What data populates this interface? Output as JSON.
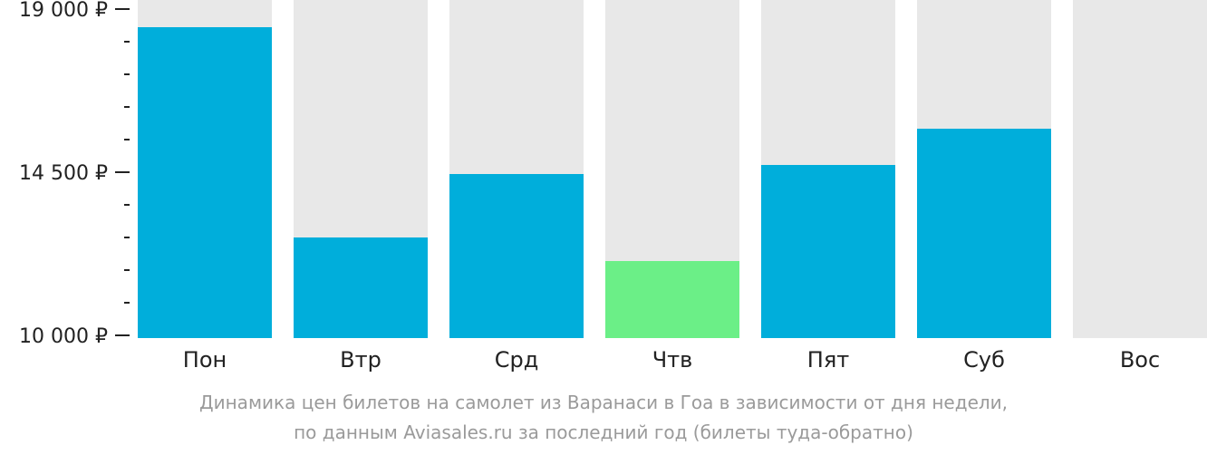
{
  "chart_data": {
    "type": "bar",
    "categories": [
      "Пон",
      "Втр",
      "Срд",
      "Чтв",
      "Пят",
      "Суб",
      "Вос"
    ],
    "values": [
      18500,
      12700,
      14450,
      12050,
      14700,
      15700,
      null
    ],
    "ylim": [
      10000,
      19000
    ],
    "yticks": [
      {
        "value": 10000,
        "label": "10 000 ₽"
      },
      {
        "value": 14500,
        "label": "14 500 ₽"
      },
      {
        "value": 19000,
        "label": "19 000 ₽"
      }
    ],
    "minor_tick_step": 900,
    "highlight_index": 3,
    "grid": false,
    "colors": {
      "bar": "#00aedb",
      "highlight": "#6bef87",
      "background_bar": "#e8e8e8",
      "axis": "#222222"
    }
  },
  "caption": {
    "line1": "Динамика цен билетов на самолет из Варанаси в Гоа в зависимости от дня недели,",
    "line2": "по данным Aviasales.ru за последний год (билеты туда-обратно)"
  }
}
